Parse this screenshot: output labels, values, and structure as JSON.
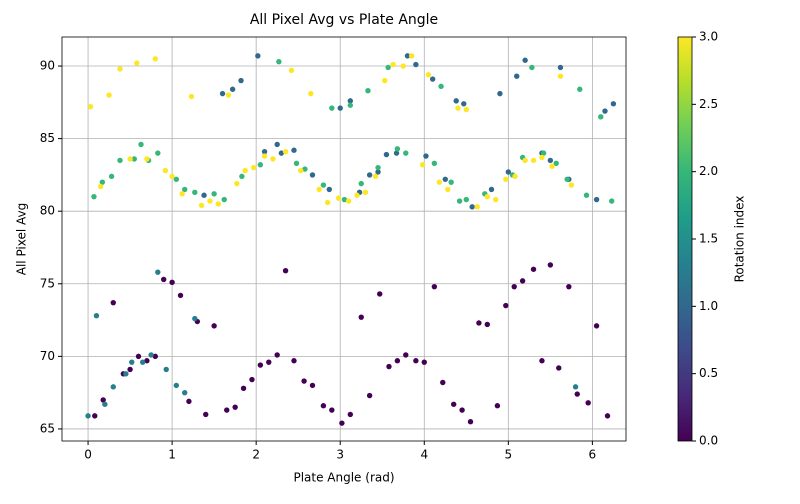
{
  "chart_data": {
    "type": "scatter",
    "title": "All Pixel Avg vs Plate Angle",
    "x_label": "Plate Angle (rad)",
    "y_label": "All Pixel Avg",
    "xlim": [
      -0.31,
      6.4
    ],
    "ylim": [
      64.17,
      92.0
    ],
    "xticks": [
      0,
      1,
      2,
      3,
      4,
      5,
      6
    ],
    "yticks": [
      65,
      70,
      75,
      80,
      85,
      90
    ],
    "grid": true,
    "colorbar": {
      "label": "Rotation index",
      "lim": [
        0,
        3
      ],
      "ticks": [
        {
          "value": 0,
          "label": "0.0"
        },
        {
          "value": 0.5,
          "label": "0.5"
        },
        {
          "value": 1,
          "label": "1.0"
        },
        {
          "value": 1.5,
          "label": "1.5"
        },
        {
          "value": 2,
          "label": "2.0"
        },
        {
          "value": 2.5,
          "label": "2.5"
        },
        {
          "value": 3,
          "label": "3.0"
        }
      ],
      "colormap": [
        "#440154",
        "#482878",
        "#3e4989",
        "#31688e",
        "#26828e",
        "#1f9e89",
        "#35b779",
        "#6ece58",
        "#b5de2b",
        "#fde725"
      ]
    },
    "x": [
      0.08,
      0.18,
      0.3,
      0.42,
      0.5,
      0.6,
      0.7,
      0.8,
      0.9,
      1.0,
      1.1,
      1.2,
      1.3,
      1.4,
      1.5,
      1.65,
      1.75,
      1.85,
      1.95,
      2.05,
      2.15,
      2.25,
      2.35,
      2.45,
      2.57,
      2.67,
      2.8,
      2.9,
      3.02,
      3.12,
      3.25,
      3.35,
      3.47,
      3.58,
      3.68,
      3.78,
      3.9,
      4.0,
      4.12,
      4.22,
      4.35,
      4.45,
      4.55,
      4.65,
      4.75,
      4.87,
      4.97,
      5.07,
      5.17,
      5.3,
      5.4,
      5.5,
      5.6,
      5.72,
      5.82,
      5.95,
      6.05,
      6.18,
      0.0,
      0.1,
      0.2,
      0.3,
      0.45,
      0.52,
      0.65,
      0.75,
      0.83,
      0.93,
      1.05,
      1.15,
      1.27,
      5.8,
      1.38,
      1.6,
      1.72,
      1.82,
      2.02,
      2.1,
      2.25,
      2.3,
      2.45,
      2.67,
      2.87,
      3.0,
      3.12,
      3.23,
      3.35,
      3.45,
      3.55,
      3.67,
      3.8,
      3.9,
      4.02,
      4.1,
      4.25,
      4.38,
      4.47,
      4.57,
      4.8,
      4.9,
      5.0,
      5.1,
      5.2,
      5.4,
      5.5,
      5.62,
      5.72,
      6.05,
      6.15,
      6.25,
      0.07,
      0.17,
      0.28,
      0.38,
      0.55,
      0.63,
      0.72,
      0.83,
      1.05,
      1.15,
      1.27,
      1.5,
      1.62,
      1.83,
      2.05,
      2.27,
      2.48,
      2.58,
      2.8,
      2.9,
      3.05,
      3.12,
      3.25,
      3.33,
      3.45,
      3.57,
      3.68,
      3.78,
      4.12,
      4.2,
      4.32,
      4.42,
      4.5,
      4.72,
      5.05,
      5.17,
      5.28,
      5.42,
      5.57,
      5.7,
      5.85,
      5.93,
      6.1,
      6.23,
      0.03,
      0.15,
      0.25,
      0.38,
      0.5,
      0.58,
      0.7,
      0.8,
      0.92,
      1.0,
      1.12,
      1.23,
      1.35,
      1.45,
      1.55,
      1.67,
      1.77,
      1.87,
      1.97,
      2.1,
      2.2,
      2.35,
      2.42,
      2.53,
      2.65,
      2.75,
      2.85,
      2.98,
      3.1,
      3.2,
      3.3,
      3.42,
      3.53,
      3.63,
      3.75,
      3.85,
      3.98,
      4.05,
      4.18,
      4.28,
      4.4,
      4.5,
      4.63,
      4.75,
      4.85,
      4.97,
      5.08,
      5.2,
      5.3,
      5.4,
      5.52,
      5.62,
      5.75
    ],
    "y": [
      65.9,
      67.0,
      73.7,
      68.8,
      69.1,
      70.0,
      69.7,
      70.0,
      75.3,
      75.1,
      74.2,
      66.9,
      72.4,
      66.0,
      72.1,
      66.3,
      66.5,
      67.8,
      68.4,
      69.4,
      69.6,
      70.1,
      75.9,
      69.7,
      68.3,
      68.0,
      66.6,
      66.3,
      65.4,
      66.0,
      72.7,
      67.3,
      74.3,
      69.3,
      69.7,
      70.1,
      69.7,
      69.6,
      74.8,
      68.2,
      66.7,
      66.3,
      65.5,
      72.3,
      72.2,
      66.6,
      73.5,
      74.8,
      75.2,
      76.0,
      69.7,
      76.3,
      69.2,
      74.8,
      67.4,
      66.8,
      72.1,
      65.9,
      65.9,
      72.8,
      66.7,
      67.9,
      68.8,
      69.6,
      69.6,
      70.1,
      75.8,
      69.1,
      68.0,
      67.5,
      72.6,
      67.9,
      81.1,
      88.1,
      88.4,
      89.0,
      90.7,
      84.1,
      84.6,
      84.0,
      84.2,
      82.5,
      81.5,
      87.1,
      87.6,
      81.3,
      82.5,
      82.7,
      83.9,
      84.0,
      90.7,
      90.1,
      83.8,
      89.1,
      82.2,
      87.6,
      87.4,
      80.3,
      81.5,
      88.1,
      82.7,
      89.3,
      90.4,
      84.0,
      83.5,
      89.9,
      82.2,
      80.8,
      86.9,
      87.4,
      81.0,
      82.0,
      82.4,
      83.5,
      83.6,
      84.6,
      83.5,
      84.0,
      82.2,
      81.5,
      81.3,
      81.2,
      80.8,
      82.4,
      83.2,
      90.3,
      83.3,
      82.9,
      81.8,
      87.1,
      80.8,
      87.3,
      81.9,
      88.3,
      83.0,
      89.9,
      84.3,
      84.0,
      83.3,
      88.6,
      82.0,
      80.7,
      80.8,
      81.2,
      82.5,
      83.7,
      89.9,
      84.0,
      83.3,
      82.2,
      88.4,
      81.1,
      86.5,
      80.7,
      87.2,
      81.7,
      88.0,
      89.8,
      83.6,
      90.2,
      83.6,
      90.5,
      82.8,
      82.4,
      81.2,
      87.9,
      80.4,
      80.7,
      80.5,
      88.0,
      81.9,
      82.8,
      83.0,
      83.8,
      83.6,
      84.1,
      89.7,
      82.8,
      88.1,
      81.5,
      80.6,
      80.9,
      80.7,
      81.1,
      81.3,
      82.4,
      89.0,
      90.1,
      90.0,
      90.7,
      83.2,
      89.4,
      82.0,
      81.5,
      87.1,
      87.0,
      80.3,
      81.0,
      80.8,
      82.2,
      82.4,
      83.5,
      83.5,
      83.7,
      83.1,
      89.3,
      81.8
    ],
    "c": [
      0,
      0,
      0,
      0,
      0,
      0,
      0,
      0,
      0,
      0,
      0,
      0,
      0,
      0,
      0,
      0,
      0,
      0,
      0,
      0,
      0,
      0,
      0,
      0,
      0,
      0,
      0,
      0,
      0,
      0,
      0,
      0,
      0,
      0,
      0,
      0,
      0,
      0,
      0,
      0,
      0,
      0,
      0,
      0,
      0,
      0,
      0,
      0,
      0,
      0,
      0,
      0,
      0,
      0,
      0,
      0,
      0,
      0,
      1.3,
      1.3,
      1.3,
      1.3,
      1.3,
      1.3,
      1.3,
      1.3,
      1.3,
      1.3,
      1.3,
      1.3,
      1.3,
      1.3,
      1,
      1,
      1,
      1,
      1,
      1,
      1,
      1,
      1,
      1,
      1,
      1,
      1,
      1,
      1,
      1,
      1,
      1,
      1,
      1,
      1,
      1,
      1,
      1,
      1,
      1,
      1,
      1,
      1,
      1,
      1,
      1,
      1,
      1,
      1,
      1,
      1,
      1,
      2,
      2,
      2,
      2,
      2,
      2,
      2,
      2,
      2,
      2,
      2,
      2,
      2,
      2,
      2,
      2,
      2,
      2,
      2,
      2,
      2,
      2,
      2,
      2,
      2,
      2,
      2,
      2,
      2,
      2,
      2,
      2,
      2,
      2,
      2,
      2,
      2,
      2,
      2,
      2,
      2,
      2,
      2,
      2,
      3,
      3,
      3,
      3,
      3,
      3,
      3,
      3,
      3,
      3,
      3,
      3,
      3,
      3,
      3,
      3,
      3,
      3,
      3,
      3,
      3,
      3,
      3,
      3,
      3,
      3,
      3,
      3,
      3,
      3,
      3,
      3,
      3,
      3,
      3,
      3,
      3,
      3,
      3,
      3,
      3,
      3,
      3,
      3,
      3,
      3,
      3,
      3,
      3,
      3,
      3,
      3,
      3
    ]
  }
}
